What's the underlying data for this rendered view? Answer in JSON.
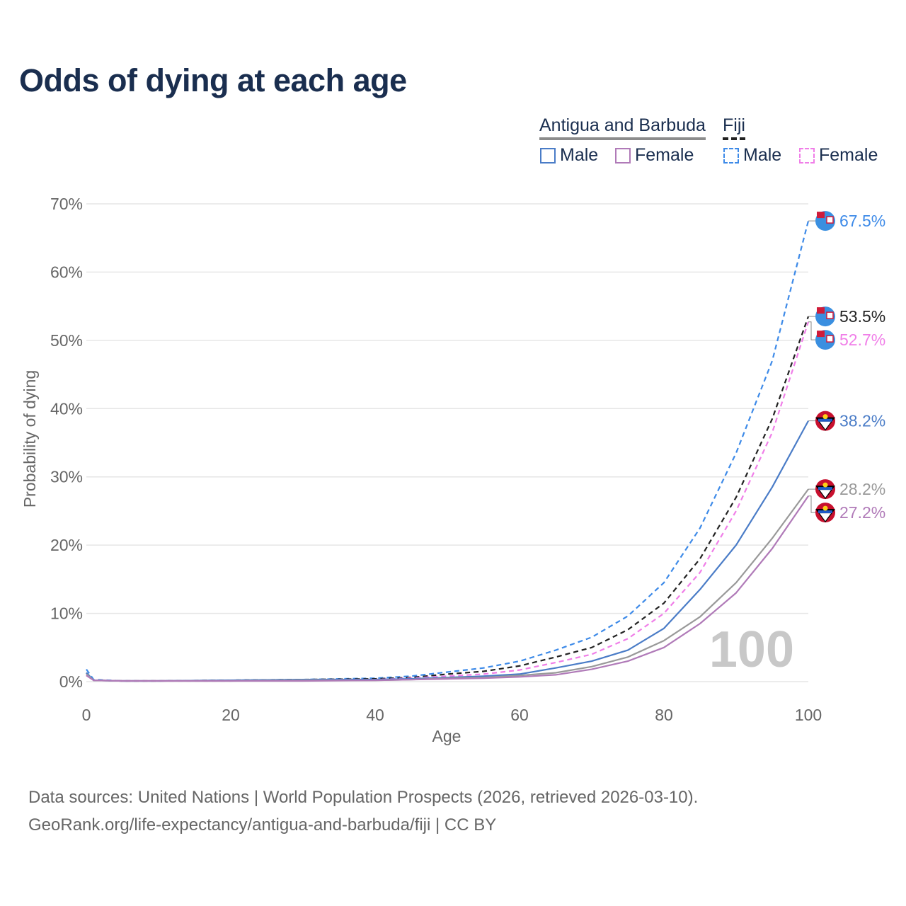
{
  "title": "Odds of dying at each age",
  "legend": {
    "countries": [
      {
        "name": "Antigua and Barbuda",
        "line_style": "solid",
        "color": "#8c8c8c"
      },
      {
        "name": "Fiji",
        "line_style": "dashed",
        "color": "#222222"
      }
    ],
    "items": [
      {
        "label": "Male",
        "country": "Antigua and Barbuda",
        "color": "#4a7cc7",
        "style": "solid"
      },
      {
        "label": "Female",
        "country": "Antigua and Barbuda",
        "color": "#b07ab8",
        "style": "solid"
      },
      {
        "label": "Male",
        "country": "Fiji",
        "color": "#3d8ae8",
        "style": "dashed"
      },
      {
        "label": "Female",
        "country": "Fiji",
        "color": "#f07ee8",
        "style": "dashed"
      }
    ]
  },
  "chart_data": {
    "type": "line",
    "title": "Odds of dying at each age",
    "xlabel": "Age",
    "ylabel": "Probability of dying",
    "xlim": [
      0,
      100
    ],
    "ylim": [
      0,
      70
    ],
    "xticks": [
      "0",
      "20",
      "40",
      "60",
      "80",
      "100"
    ],
    "yticks": [
      "0%",
      "10%",
      "20%",
      "30%",
      "40%",
      "50%",
      "60%",
      "70%"
    ],
    "watermark": "100",
    "x": [
      0,
      1,
      5,
      10,
      20,
      30,
      40,
      45,
      50,
      55,
      60,
      65,
      70,
      75,
      80,
      85,
      90,
      95,
      100
    ],
    "series": [
      {
        "name": "Fiji Male",
        "country": "Fiji",
        "sex": "Male",
        "color": "#3d8ae8",
        "dash": true,
        "values": [
          1.8,
          0.3,
          0.1,
          0.1,
          0.2,
          0.3,
          0.5,
          0.8,
          1.4,
          2.0,
          3.0,
          4.6,
          6.5,
          9.6,
          14.5,
          22.5,
          33.5,
          47.0,
          67.5
        ],
        "end_label": "67.5%",
        "label_color": "#3d8ae8"
      },
      {
        "name": "Fiji Both",
        "country": "Fiji",
        "sex": "Both",
        "color": "#222222",
        "dash": true,
        "values": [
          1.3,
          0.2,
          0.1,
          0.1,
          0.2,
          0.3,
          0.4,
          0.6,
          1.1,
          1.5,
          2.3,
          3.6,
          5.0,
          7.6,
          11.5,
          18.0,
          27.0,
          38.5,
          53.5
        ],
        "end_label": "53.5%",
        "label_color": "#222222"
      },
      {
        "name": "Fiji Female",
        "country": "Fiji",
        "sex": "Female",
        "color": "#f07ee8",
        "dash": true,
        "values": [
          1.0,
          0.2,
          0.1,
          0.1,
          0.1,
          0.2,
          0.3,
          0.5,
          0.8,
          1.1,
          1.7,
          2.8,
          4.0,
          6.3,
          10.0,
          16.0,
          25.0,
          36.5,
          52.7
        ],
        "end_label": "52.7%",
        "label_color": "#f07ee8"
      },
      {
        "name": "Antigua and Barbuda Male",
        "country": "Antigua and Barbuda",
        "sex": "Male",
        "color": "#4a7cc7",
        "dash": false,
        "values": [
          1.3,
          0.2,
          0.1,
          0.1,
          0.2,
          0.3,
          0.3,
          0.4,
          0.6,
          0.8,
          1.1,
          2.0,
          3.0,
          4.6,
          7.8,
          13.5,
          20.0,
          28.5,
          38.2
        ],
        "end_label": "38.2%",
        "label_color": "#4a7cc7"
      },
      {
        "name": "Antigua and Barbuda Both",
        "country": "Antigua and Barbuda",
        "sex": "Both",
        "color": "#999999",
        "dash": false,
        "values": [
          1.1,
          0.2,
          0.1,
          0.1,
          0.1,
          0.2,
          0.2,
          0.3,
          0.5,
          0.6,
          0.9,
          1.3,
          2.2,
          3.6,
          6.0,
          9.5,
          14.5,
          21.0,
          28.2
        ],
        "end_label": "28.2%",
        "label_color": "#999999"
      },
      {
        "name": "Antigua and Barbuda Female",
        "country": "Antigua and Barbuda",
        "sex": "Female",
        "color": "#b07ab8",
        "dash": false,
        "values": [
          0.9,
          0.2,
          0.1,
          0.1,
          0.1,
          0.1,
          0.2,
          0.3,
          0.4,
          0.5,
          0.7,
          1.0,
          1.8,
          3.0,
          5.0,
          8.5,
          13.0,
          19.5,
          27.2
        ],
        "end_label": "27.2%",
        "label_color": "#b07ab8"
      }
    ]
  },
  "source": {
    "line1": "Data sources: United Nations | World Population Prospects (2026, retrieved 2026-03-10).",
    "line2": "GeoRank.org/life-expectancy/antigua-and-barbuda/fiji | CC BY"
  }
}
